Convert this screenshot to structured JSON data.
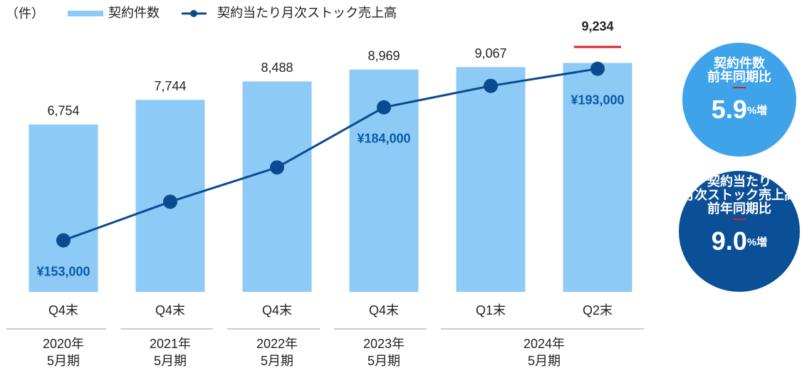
{
  "chart_data": {
    "type": "bar",
    "unit_label": "（件）",
    "categories": [
      "Q4末",
      "Q4末",
      "Q4末",
      "Q4末",
      "Q1末",
      "Q2末"
    ],
    "groups": [
      {
        "year": "2020年",
        "period": "5月期"
      },
      {
        "year": "2021年",
        "period": "5月期"
      },
      {
        "year": "2022年",
        "period": "5月期"
      },
      {
        "year": "2023年",
        "period": "5月期"
      },
      {
        "year": "2024年",
        "period": "5月期"
      }
    ],
    "ylim": [
      0,
      11200
    ],
    "y2lim": [
      141000,
      205700
    ],
    "series": [
      {
        "name": "契約件数",
        "type": "bar",
        "color": "#8ecaf6",
        "values": [
          6754,
          7744,
          8488,
          8969,
          9067,
          9234
        ],
        "value_labels": [
          "6,754",
          "7,744",
          "8,488",
          "8,969",
          "9,067",
          "9,234"
        ]
      },
      {
        "name": "契約当たり月次ストック売上高",
        "type": "line",
        "axis": "y2",
        "color": "#0b4a8f",
        "values": [
          153000,
          162000,
          170000,
          184000,
          189000,
          193000
        ],
        "value_labels": [
          "¥153,000",
          null,
          null,
          "¥184,000",
          null,
          "¥193,000"
        ]
      }
    ],
    "badges": [
      {
        "lines": [
          "契約件数",
          "前年同期比"
        ],
        "value": "5.9",
        "unit": "%増",
        "color": "#3fa3ea"
      },
      {
        "lines": [
          "契約当たり",
          "月次ストック売上高",
          "前年同期比"
        ],
        "value": "9.0",
        "unit": "%増",
        "color": "#0b4f96"
      }
    ]
  }
}
